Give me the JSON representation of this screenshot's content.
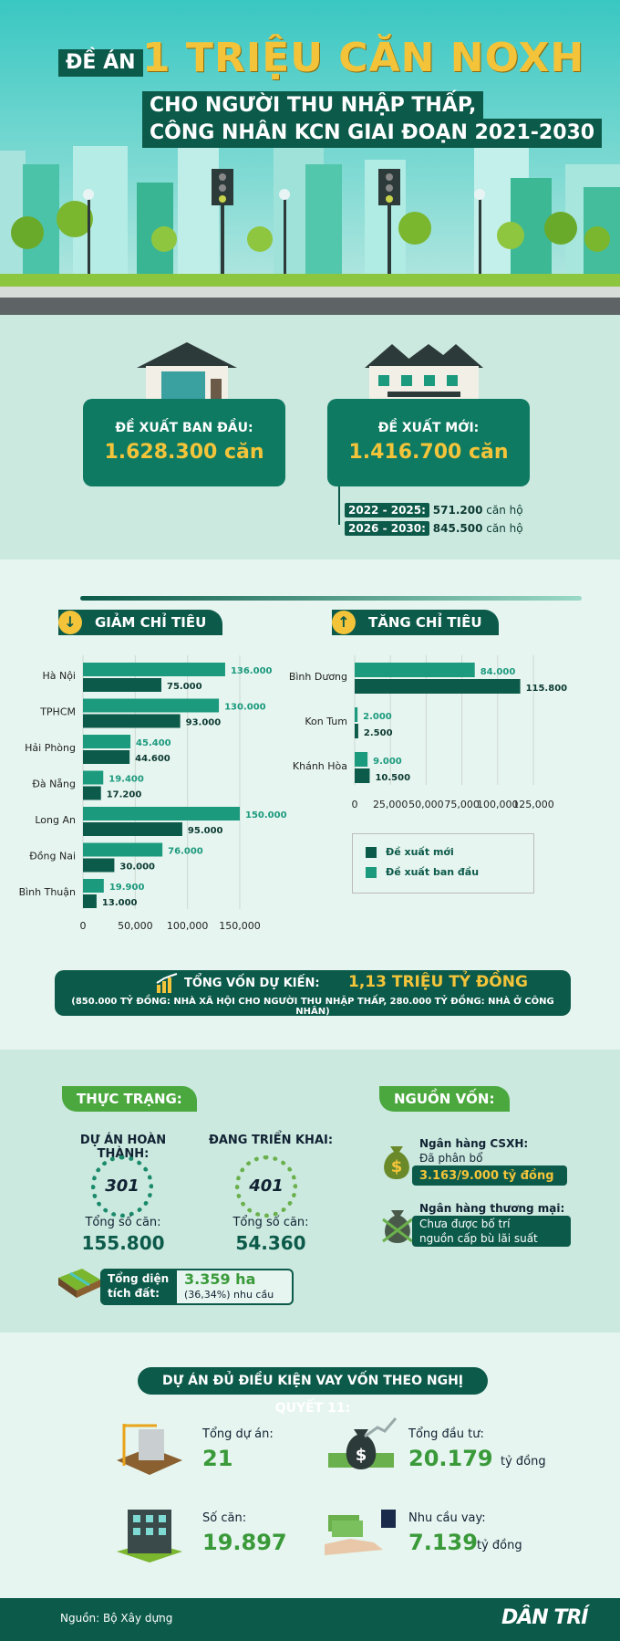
{
  "header": {
    "de_an": "ĐỀ ÁN",
    "title": "1 TRIỆU CĂN NOXH",
    "subtitle_1": "CHO NGƯỜI THU NHẬP THẤP,",
    "subtitle_2": "CÔNG NHÂN KCN GIAI ĐOẠN 2021-2030"
  },
  "proposal": {
    "initial_label": "ĐỀ XUẤT BAN ĐẦU:",
    "initial_value": "1.628.300 căn",
    "new_label": "ĐỀ XUẤT MỚI:",
    "new_value": "1.416.700 căn",
    "periods": [
      {
        "range": "2022 - 2025:",
        "value": "571.200",
        "unit": "căn hộ"
      },
      {
        "range": "2026 - 2030:",
        "value": "845.500",
        "unit": "căn hộ"
      }
    ]
  },
  "decrease_title": "GIẢM CHỈ TIÊU",
  "increase_title": "TĂNG CHỈ TIÊU",
  "colors": {
    "new": "#0c5a4a",
    "initial": "#1c9a7e",
    "accent": "#f3c43a",
    "green": "#4aa83e"
  },
  "chart_data": [
    {
      "type": "bar",
      "orientation": "horizontal",
      "title": "GIẢM CHỈ TIÊU",
      "categories": [
        "Hà Nội",
        "TPHCM",
        "Hải Phòng",
        "Đà Nẵng",
        "Long An",
        "Đồng Nai",
        "Bình Thuận"
      ],
      "series": [
        {
          "name": "Đề xuất ban đầu",
          "values": [
            136000,
            130000,
            45400,
            19400,
            150000,
            76000,
            19900
          ],
          "labels": [
            "136.000",
            "130.000",
            "45.400",
            "19.400",
            "150.000",
            "76.000",
            "19.900"
          ]
        },
        {
          "name": "Đề xuất mới",
          "values": [
            75000,
            93000,
            44600,
            17200,
            95000,
            30000,
            13000
          ],
          "labels": [
            "75.000",
            "93.000",
            "44.600",
            "17.200",
            "95.000",
            "30.000",
            "13.000"
          ]
        }
      ],
      "xlim": [
        0,
        150000
      ],
      "xticks": [
        "0",
        "50,000",
        "100,000",
        "150,000"
      ]
    },
    {
      "type": "bar",
      "orientation": "horizontal",
      "title": "TĂNG CHỈ TIÊU",
      "categories": [
        "Bình Dương",
        "Kon Tum",
        "Khánh Hòa"
      ],
      "series": [
        {
          "name": "Đề xuất ban đầu",
          "values": [
            84000,
            2000,
            9000
          ],
          "labels": [
            "84.000",
            "2.000",
            "9.000"
          ]
        },
        {
          "name": "Đề xuất mới",
          "values": [
            115800,
            2500,
            10500
          ],
          "labels": [
            "115.800",
            "2.500",
            "10.500"
          ]
        }
      ],
      "xlim": [
        0,
        125000
      ],
      "xticks": [
        "0",
        "25,000",
        "50,000",
        "75,000",
        "100,000",
        "125,000"
      ],
      "legend": [
        "Đề xuất mới",
        "Đề xuất ban đầu"
      ],
      "legend_position": "bottom"
    }
  ],
  "funding": {
    "label": "TỔNG VỐN DỰ KIẾN:",
    "value": "1,13 TRIỆU TỶ ĐỒNG",
    "detail": "(850.000 TỶ ĐỒNG: NHÀ XÃ HỘI CHO NGƯỜI THU NHẬP THẤP, 280.000 TỶ ĐỒNG: NHÀ Ở CÔNG NHÂN)"
  },
  "status": {
    "title": "THỰC TRẠNG:",
    "completed_label": "DỰ ÁN HOÀN THÀNH:",
    "completed_count": "301",
    "completed_units_label": "Tổng số căn:",
    "completed_units": "155.800",
    "ongoing_label": "ĐANG TRIỂN KHAI:",
    "ongoing_count": "401",
    "ongoing_units_label": "Tổng số căn:",
    "ongoing_units": "54.360",
    "land_label_1": "Tổng diện",
    "land_label_2": "tích đất:",
    "land_value": "3.359 ha",
    "land_pct": "(36,34%) nhu cầu"
  },
  "sources": {
    "title": "NGUỒN VỐN:",
    "bank1_name": "Ngân hàng CSXH:",
    "bank1_note": "Đã phân bổ",
    "bank1_value": "3.163/9.000 tỷ đồng",
    "bank2_name": "Ngân hàng thương mại:",
    "bank2_note_1": "Chưa được bố trí",
    "bank2_note_2": "nguồn cấp bù lãi suất"
  },
  "resolution": {
    "title": "DỰ ÁN ĐỦ ĐIỀU KIỆN VAY VỐN THEO NGHỊ QUYẾT 11:",
    "projects_label": "Tổng dự án:",
    "projects_value": "21",
    "invest_label": "Tổng đầu tư:",
    "invest_value": "20.179",
    "invest_unit": "tỷ đồng",
    "units_label": "Số căn:",
    "units_value": "19.897",
    "loan_label": "Nhu cầu vay:",
    "loan_value": "7.139",
    "loan_unit": "tỷ đồng"
  },
  "footer": {
    "source": "Nguồn: Bộ Xây dựng",
    "brand": "DÂN TRÍ"
  }
}
